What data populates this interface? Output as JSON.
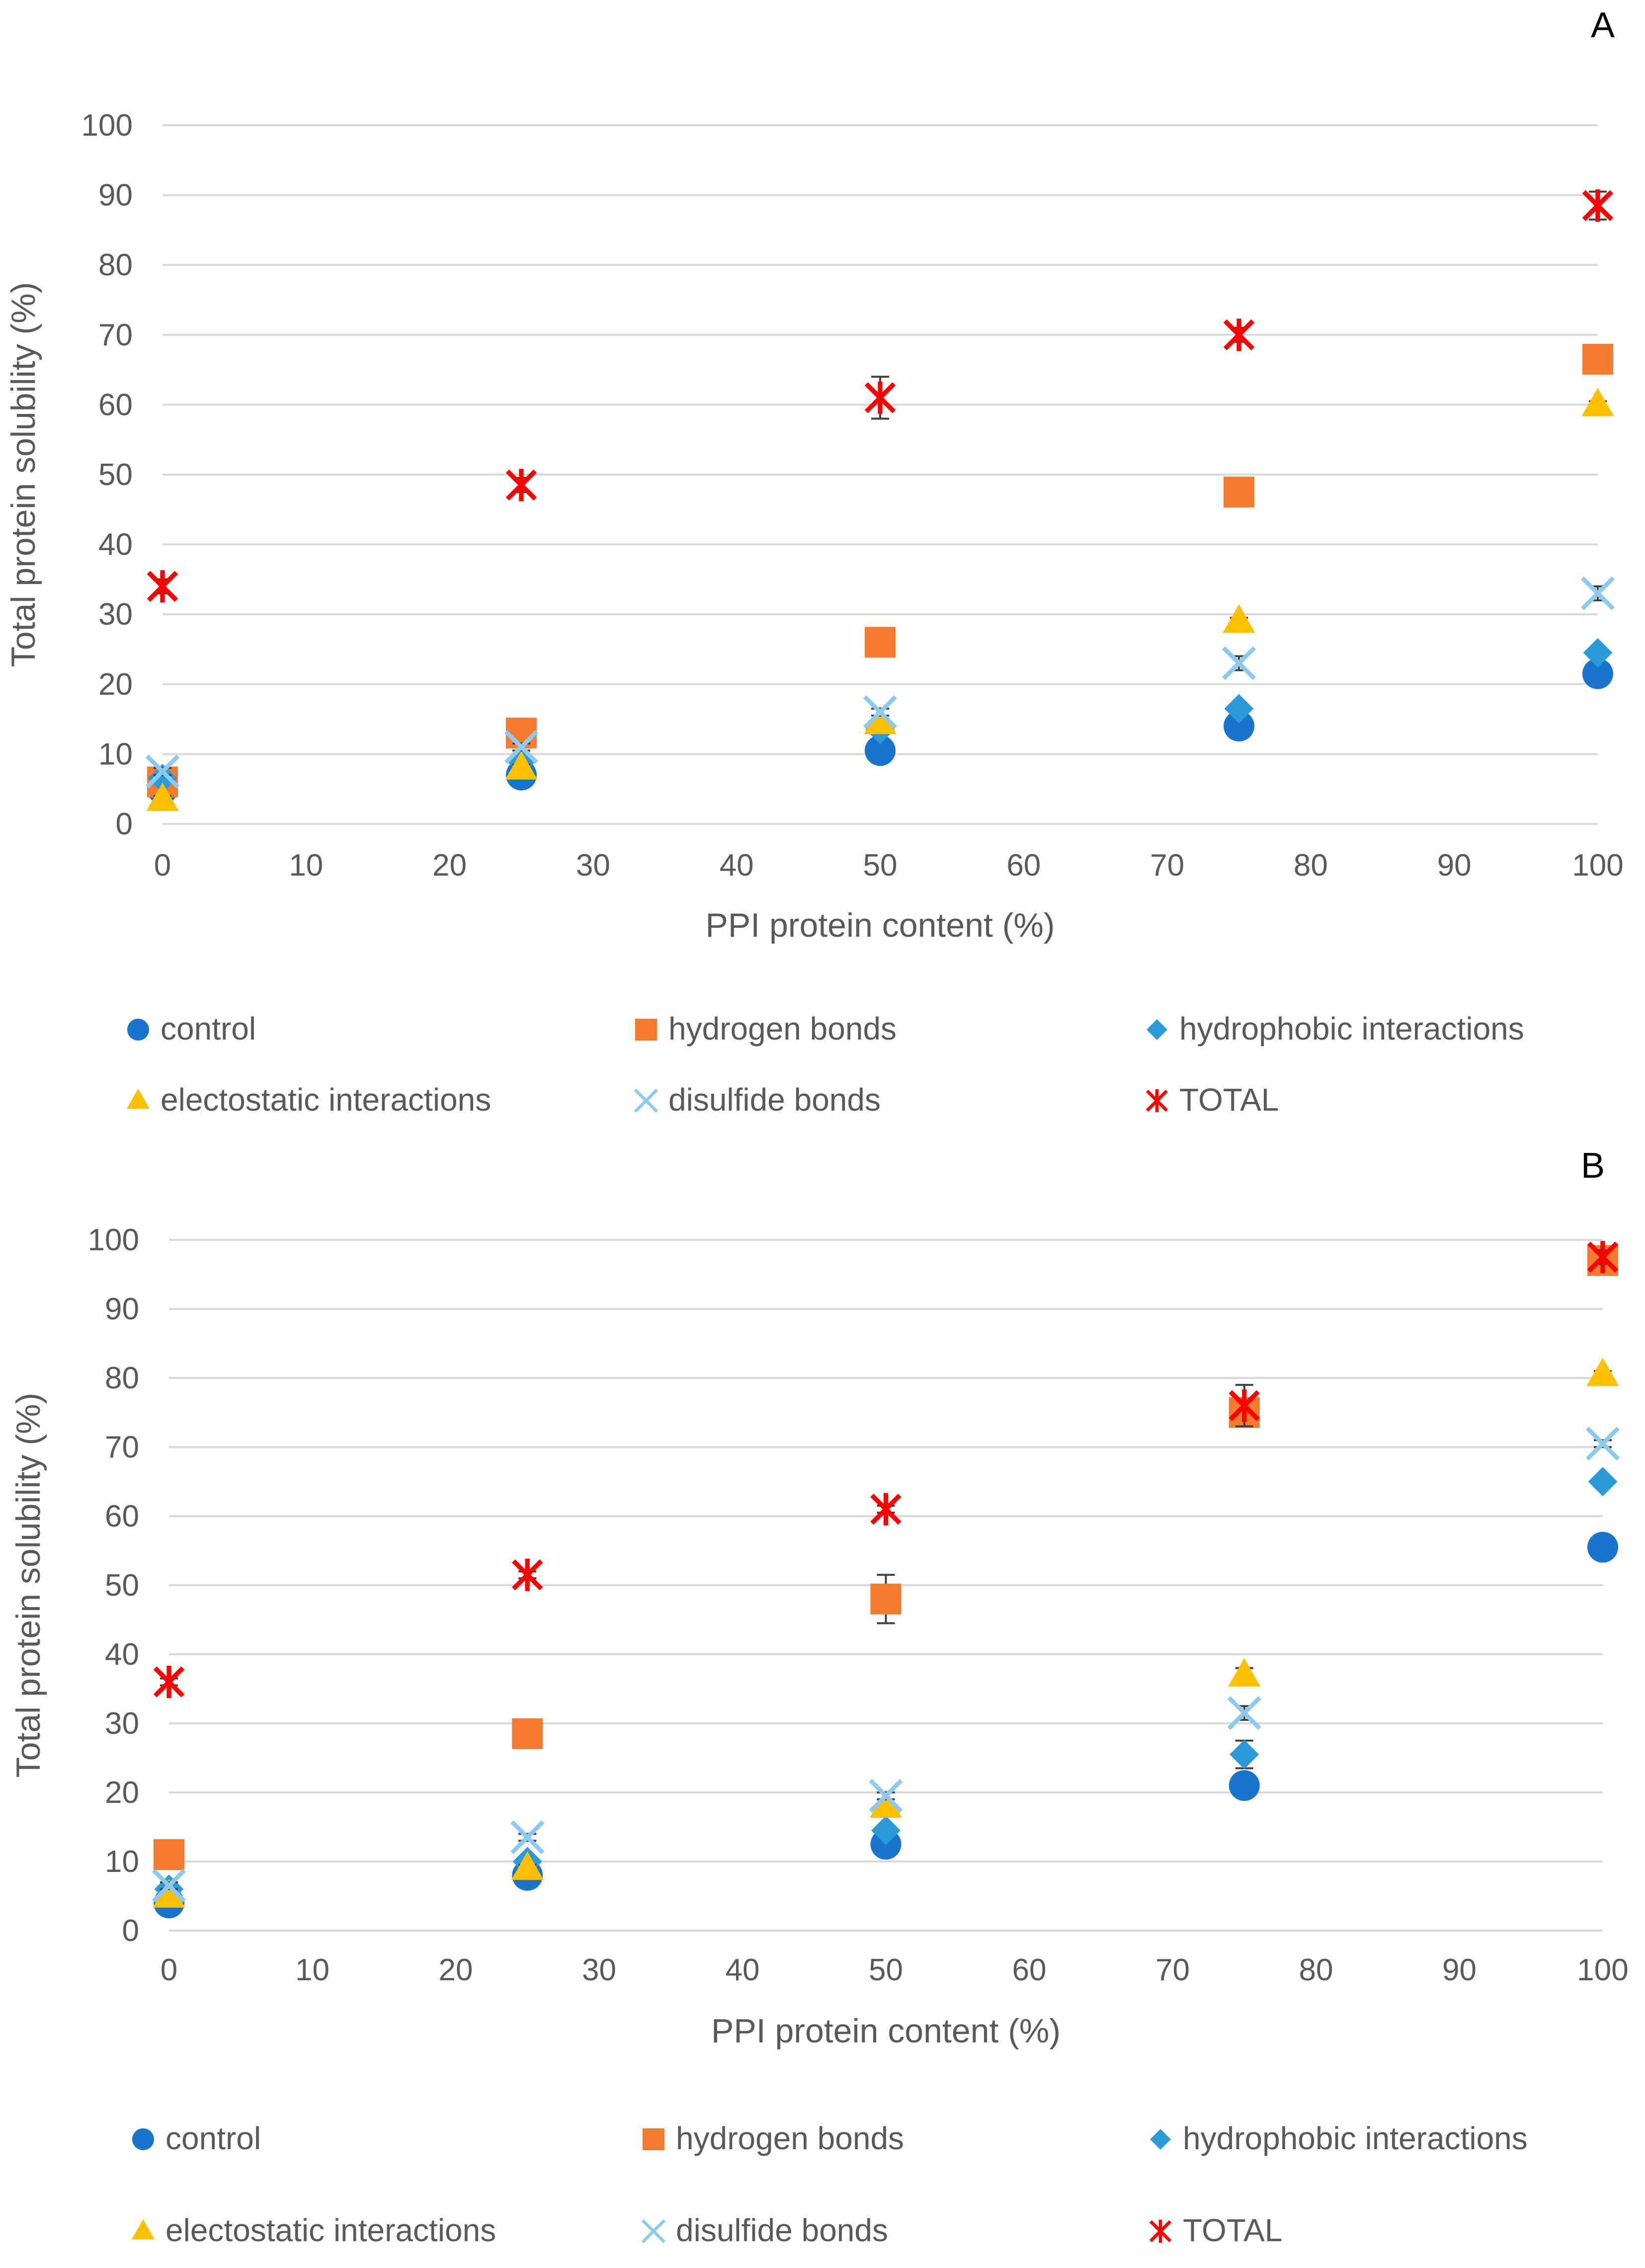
{
  "chart_data": [
    {
      "type": "scatter",
      "panel_label": "A",
      "xlabel": "PPI protein content (%)",
      "ylabel": "Total protein solubility (%)",
      "xlim": [
        0,
        100
      ],
      "ylim": [
        0,
        100
      ],
      "x_ticks": [
        "0",
        "10",
        "20",
        "30",
        "40",
        "50",
        "60",
        "70",
        "80",
        "90",
        "100"
      ],
      "y_ticks": [
        "0",
        "10",
        "20",
        "30",
        "40",
        "50",
        "60",
        "70",
        "80",
        "90",
        "100"
      ],
      "grid": "horizontal",
      "legend_position": "bottom",
      "x": [
        0,
        25,
        50,
        75,
        100
      ],
      "series": [
        {
          "name": "control",
          "marker": "circle",
          "color": "#1874CD",
          "values": [
            5,
            7,
            10.5,
            14,
            21.5
          ],
          "errors": [
            0.5,
            0.5,
            0.5,
            0.5,
            0.5
          ]
        },
        {
          "name": "hydrogen bonds",
          "marker": "square",
          "color": "#F47B30",
          "values": [
            6,
            13,
            26,
            47.5,
            66.5
          ],
          "errors": [
            0.5,
            0.5,
            0.5,
            1,
            0.5
          ]
        },
        {
          "name": "hydrophobic interactions",
          "marker": "diamond",
          "color": "#2A9BD8",
          "values": [
            6.5,
            9,
            13.5,
            16.5,
            24.5
          ],
          "errors": [
            0.5,
            0.5,
            0.5,
            0.5,
            0.5
          ]
        },
        {
          "name": "electostatic interactions",
          "marker": "triangle",
          "color": "#FFC000",
          "values": [
            3.5,
            8,
            14.5,
            29,
            60
          ],
          "errors": [
            0.5,
            0.5,
            0.5,
            0.5,
            0.5
          ]
        },
        {
          "name": "disulfide bonds",
          "marker": "x",
          "color": "#8EC9EF",
          "values": [
            7.5,
            11,
            16,
            23,
            33
          ],
          "errors": [
            0.5,
            0.5,
            0.5,
            1,
            1
          ]
        },
        {
          "name": "TOTAL",
          "marker": "star",
          "color": "#FF0000",
          "values": [
            34,
            48.5,
            61,
            70,
            88.5
          ],
          "errors": [
            1,
            1,
            3,
            1,
            2
          ]
        }
      ]
    },
    {
      "type": "scatter",
      "panel_label": "B",
      "xlabel": "PPI protein content (%)",
      "ylabel": "Total protein solubility (%)",
      "xlim": [
        0,
        100
      ],
      "ylim": [
        0,
        100
      ],
      "x_ticks": [
        "0",
        "10",
        "20",
        "30",
        "40",
        "50",
        "60",
        "70",
        "80",
        "90",
        "100"
      ],
      "y_ticks": [
        "0",
        "10",
        "20",
        "30",
        "40",
        "50",
        "60",
        "70",
        "80",
        "90",
        "100"
      ],
      "grid": "horizontal",
      "legend_position": "bottom",
      "x": [
        0,
        25,
        50,
        75,
        100
      ],
      "series": [
        {
          "name": "control",
          "marker": "circle",
          "color": "#1874CD",
          "values": [
            4,
            8,
            12.5,
            21,
            55.5
          ],
          "errors": [
            0.5,
            0.5,
            0.5,
            0.5,
            0.5
          ]
        },
        {
          "name": "hydrogen bonds",
          "marker": "square",
          "color": "#F47B30",
          "values": [
            11,
            28.5,
            48,
            75,
            97
          ],
          "errors": [
            0.5,
            0.5,
            3.5,
            1,
            0.5
          ]
        },
        {
          "name": "hydrophobic interactions",
          "marker": "diamond",
          "color": "#2A9BD8",
          "values": [
            6,
            10,
            14.5,
            25.5,
            65
          ],
          "errors": [
            0.5,
            0.5,
            0.5,
            2,
            0.5
          ]
        },
        {
          "name": "electostatic interactions",
          "marker": "triangle",
          "color": "#FFC000",
          "values": [
            5,
            9,
            18,
            37,
            80.5
          ],
          "errors": [
            0.5,
            0.5,
            0.5,
            1,
            0.5
          ]
        },
        {
          "name": "disulfide bonds",
          "marker": "x",
          "color": "#8EC9EF",
          "values": [
            6.5,
            13.5,
            19.5,
            31.5,
            70.5
          ],
          "errors": [
            0.5,
            0.5,
            0.5,
            1,
            0.5
          ]
        },
        {
          "name": "TOTAL",
          "marker": "star",
          "color": "#FF0000",
          "values": [
            36,
            51.5,
            61,
            76,
            97.5
          ],
          "errors": [
            0.5,
            0.5,
            0.5,
            3,
            1
          ]
        }
      ]
    }
  ]
}
